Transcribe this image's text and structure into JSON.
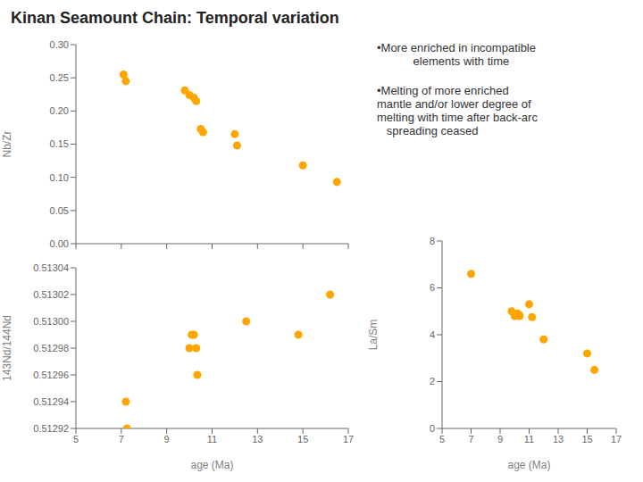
{
  "title": "Kinan Seamount Chain: Temporal variation",
  "annotations": [
    "•More enriched in incompatible\n   elements with time",
    "•Melting of more enriched\nmantle and/or lower degree of\nmelting with time after back-arc\n   spreading ceased"
  ],
  "chart_data": [
    {
      "type": "scatter",
      "x": [
        7.1,
        7.2,
        9.8,
        10.0,
        10.2,
        10.3,
        10.5,
        10.6,
        12.0,
        12.1,
        15.0,
        16.5
      ],
      "values": [
        0.255,
        0.245,
        0.231,
        0.224,
        0.22,
        0.215,
        0.173,
        0.168,
        0.165,
        0.148,
        0.118,
        0.093
      ],
      "color": "#FFA500",
      "xlim": [
        5,
        17
      ],
      "xticks": [
        5,
        7,
        9,
        11,
        13,
        15,
        17
      ],
      "ylim": [
        0,
        0.3
      ],
      "yticks": [
        {
          "value": 0,
          "label": "0.00"
        },
        0.05,
        {
          "value": 0.1,
          "label": "0.10"
        },
        0.15,
        {
          "value": 0.2,
          "label": "0.20"
        },
        0.25,
        {
          "value": 0.3,
          "label": "0.30"
        }
      ],
      "ylabel": "Nb/Zr",
      "tick_labels": "y"
    },
    {
      "type": "scatter",
      "x": [
        7.2,
        7.25,
        10.0,
        10.1,
        10.2,
        10.3,
        10.35,
        12.5,
        14.8,
        16.2
      ],
      "values": [
        0.51294,
        0.51292,
        0.51298,
        0.51299,
        0.51299,
        0.51298,
        0.51296,
        0.513,
        0.51299,
        0.51302
      ],
      "color": "#FFA500",
      "xlim": [
        5,
        17
      ],
      "xticks": [
        5,
        7,
        9,
        11,
        13,
        15,
        17
      ],
      "ylim": [
        0.51292,
        0.51304
      ],
      "yticks": [
        0.51292,
        0.51294,
        0.51296,
        0.51298,
        {
          "value": 0.513,
          "label": "0.51300"
        },
        0.51302,
        0.51304
      ],
      "ylabel": "143Nd/144Nd",
      "xlabel": "age (Ma)"
    },
    {
      "type": "scatter",
      "x": [
        7.0,
        9.8,
        10.0,
        10.2,
        10.3,
        10.35,
        11.0,
        11.2,
        12.0,
        15.0,
        15.5
      ],
      "values": [
        6.6,
        5.0,
        4.8,
        4.9,
        4.85,
        4.8,
        5.3,
        4.75,
        3.8,
        3.2,
        2.5
      ],
      "color": "#FFA500",
      "xlim": [
        5,
        17
      ],
      "xticks": [
        5,
        7,
        9,
        11,
        13,
        15,
        17
      ],
      "ylim": [
        0,
        8
      ],
      "yticks": [
        0,
        2,
        4,
        6,
        8
      ],
      "ylabel": "La/Sm",
      "xlabel": "age (Ma)"
    }
  ]
}
